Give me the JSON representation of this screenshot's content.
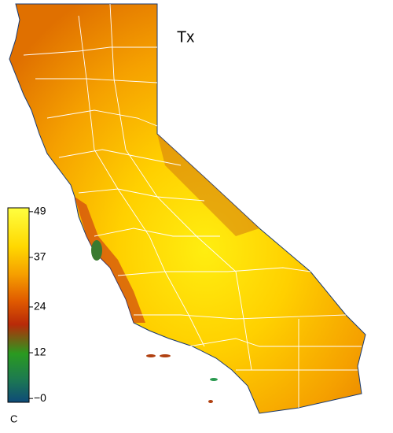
{
  "title": "Tx",
  "colorbar": {
    "range": [
      -1,
      50
    ],
    "ticks": [
      49,
      37,
      24,
      12,
      {
        "value": 0,
        "label": "−0"
      }
    ],
    "unit": "C"
  }
}
